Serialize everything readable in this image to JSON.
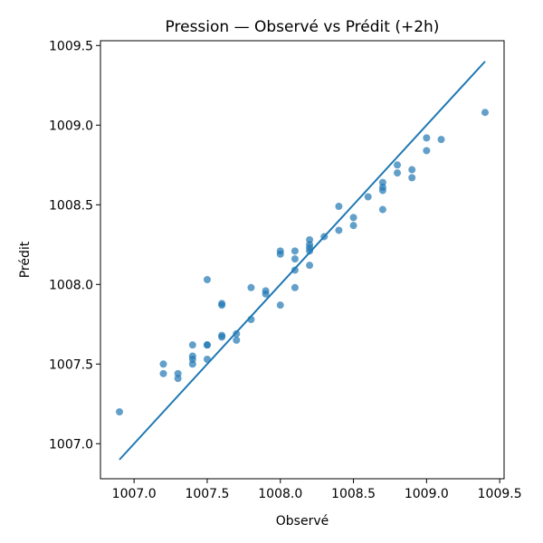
{
  "chart_data": {
    "type": "scatter",
    "title": "Pression — Observé vs Prédit (+2h)",
    "xlabel": "Observé",
    "ylabel": "Prédit",
    "xlim": [
      1006.77,
      1009.53
    ],
    "ylim": [
      1006.78,
      1009.53
    ],
    "xticks": [
      1007.0,
      1007.5,
      1008.0,
      1008.5,
      1009.0,
      1009.5
    ],
    "yticks": [
      1007.0,
      1007.5,
      1008.0,
      1008.5,
      1009.0,
      1009.5
    ],
    "xtick_labels": [
      "1007.0",
      "1007.5",
      "1008.0",
      "1008.5",
      "1009.0",
      "1009.5"
    ],
    "ytick_labels": [
      "1007.0",
      "1007.5",
      "1008.0",
      "1008.5",
      "1009.0",
      "1009.5"
    ],
    "grid": false,
    "series": [
      {
        "kind": "scatter",
        "color": "#1f77b4",
        "points": [
          [
            1006.9,
            1007.2
          ],
          [
            1007.2,
            1007.5
          ],
          [
            1007.2,
            1007.44
          ],
          [
            1007.3,
            1007.44
          ],
          [
            1007.3,
            1007.41
          ],
          [
            1007.4,
            1007.62
          ],
          [
            1007.4,
            1007.55
          ],
          [
            1007.4,
            1007.53
          ],
          [
            1007.4,
            1007.5
          ],
          [
            1007.5,
            1008.03
          ],
          [
            1007.5,
            1007.62
          ],
          [
            1007.5,
            1007.62
          ],
          [
            1007.5,
            1007.53
          ],
          [
            1007.6,
            1007.87
          ],
          [
            1007.6,
            1007.88
          ],
          [
            1007.6,
            1007.67
          ],
          [
            1007.6,
            1007.68
          ],
          [
            1007.7,
            1007.69
          ],
          [
            1007.7,
            1007.65
          ],
          [
            1007.8,
            1007.98
          ],
          [
            1007.8,
            1007.78
          ],
          [
            1007.9,
            1007.96
          ],
          [
            1007.9,
            1007.94
          ],
          [
            1008.0,
            1008.21
          ],
          [
            1008.0,
            1008.19
          ],
          [
            1008.0,
            1007.87
          ],
          [
            1008.1,
            1008.21
          ],
          [
            1008.1,
            1008.16
          ],
          [
            1008.1,
            1008.09
          ],
          [
            1008.1,
            1007.98
          ],
          [
            1008.2,
            1008.28
          ],
          [
            1008.2,
            1008.25
          ],
          [
            1008.2,
            1008.23
          ],
          [
            1008.2,
            1008.21
          ],
          [
            1008.2,
            1008.12
          ],
          [
            1008.3,
            1008.3
          ],
          [
            1008.4,
            1008.49
          ],
          [
            1008.4,
            1008.34
          ],
          [
            1008.5,
            1008.42
          ],
          [
            1008.5,
            1008.37
          ],
          [
            1008.6,
            1008.55
          ],
          [
            1008.7,
            1008.64
          ],
          [
            1008.7,
            1008.61
          ],
          [
            1008.7,
            1008.59
          ],
          [
            1008.7,
            1008.47
          ],
          [
            1008.8,
            1008.75
          ],
          [
            1008.8,
            1008.7
          ],
          [
            1008.9,
            1008.72
          ],
          [
            1008.9,
            1008.67
          ],
          [
            1009.0,
            1008.92
          ],
          [
            1009.0,
            1008.84
          ],
          [
            1009.1,
            1008.91
          ],
          [
            1009.4,
            1009.08
          ]
        ]
      },
      {
        "kind": "line",
        "color": "#1f77b4",
        "points": [
          [
            1006.9,
            1006.9
          ],
          [
            1009.4,
            1009.4
          ]
        ]
      }
    ]
  }
}
